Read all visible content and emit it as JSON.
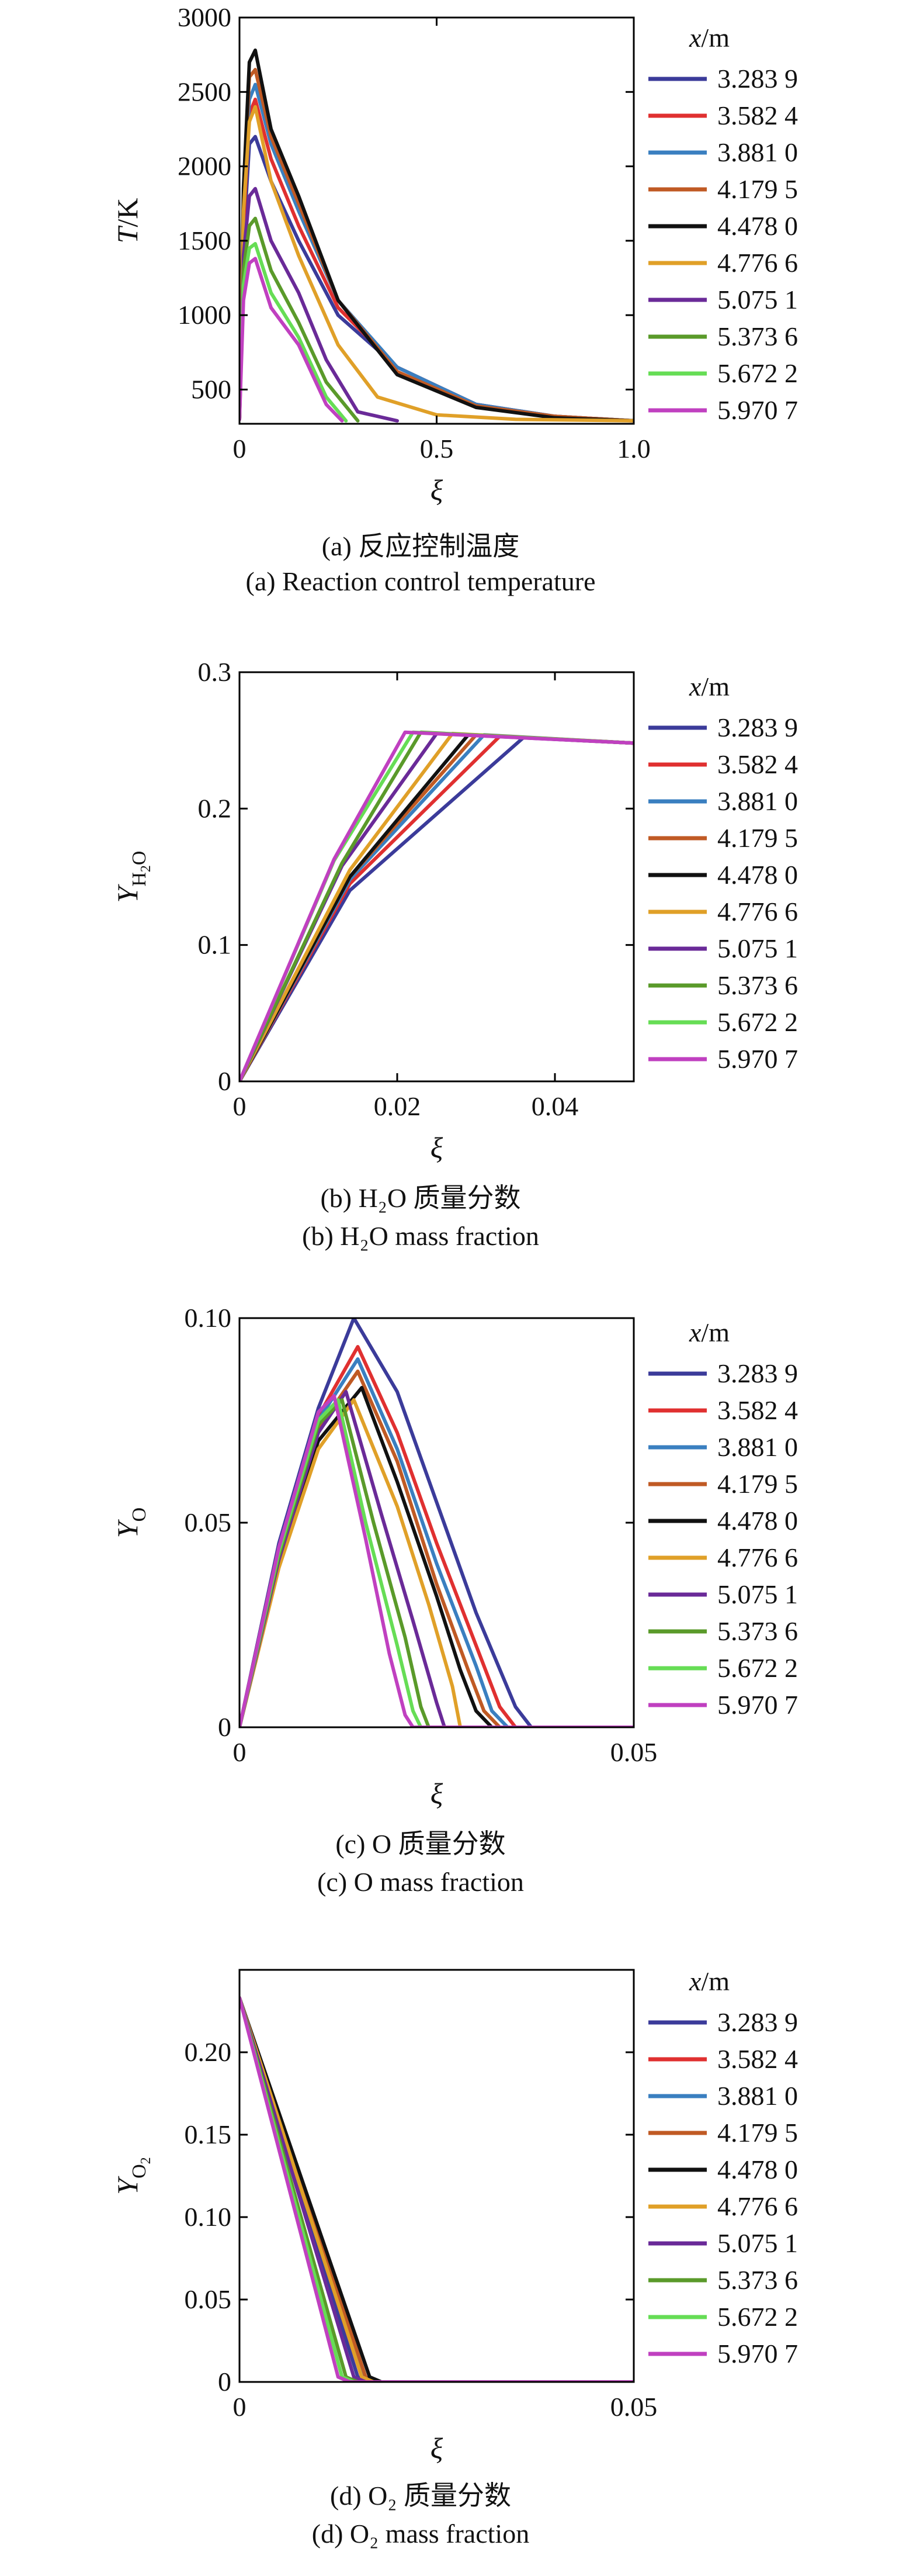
{
  "legend_title": "x/m",
  "legend_entries": [
    "3.283 9",
    "3.582 4",
    "3.881 0",
    "4.179 5",
    "4.478 0",
    "4.776 6",
    "5.075 1",
    "5.373 6",
    "5.672 2",
    "5.970 7"
  ],
  "colors": [
    "#3b3b9a",
    "#e03030",
    "#3a7fc0",
    "#c05a24",
    "#111111",
    "#e0a028",
    "#6a2a98",
    "#5a9a2a",
    "#66dd55",
    "#c040c0"
  ],
  "chart_data": [
    {
      "type": "line",
      "ylabel": "T/K",
      "xlabel": "ξ",
      "xlim": [
        0,
        1.0
      ],
      "ylim": [
        270,
        3000
      ],
      "xticks": [
        "0",
        "0.5",
        "1.0"
      ],
      "yticks": [
        "500",
        "1000",
        "1500",
        "2000",
        "2500",
        "3000"
      ],
      "caption_cn": "(a) 反应控制温度",
      "caption_en": "(a) Reaction control temperature",
      "series": [
        {
          "name": "3.283 9",
          "x": [
            0,
            0.01,
            0.025,
            0.04,
            0.08,
            0.15,
            0.25,
            0.4,
            0.6,
            0.8,
            1.0
          ],
          "y": [
            300,
            1500,
            2150,
            2200,
            1900,
            1500,
            1000,
            650,
            400,
            320,
            290
          ]
        },
        {
          "name": "3.582 4",
          "x": [
            0,
            0.01,
            0.025,
            0.04,
            0.08,
            0.15,
            0.25,
            0.4,
            0.6,
            0.8,
            1.0
          ],
          "y": [
            300,
            1600,
            2350,
            2450,
            2050,
            1600,
            1050,
            650,
            400,
            320,
            290
          ]
        },
        {
          "name": "3.881 0",
          "x": [
            0,
            0.01,
            0.025,
            0.04,
            0.08,
            0.15,
            0.25,
            0.4,
            0.6,
            0.8,
            1.0
          ],
          "y": [
            300,
            1700,
            2450,
            2550,
            2150,
            1700,
            1100,
            650,
            400,
            320,
            290
          ]
        },
        {
          "name": "4.179 5",
          "x": [
            0,
            0.01,
            0.025,
            0.04,
            0.08,
            0.15,
            0.25,
            0.4,
            0.6,
            0.8,
            1.0
          ],
          "y": [
            300,
            1800,
            2600,
            2650,
            2200,
            1750,
            1100,
            620,
            390,
            320,
            290
          ]
        },
        {
          "name": "4.478 0",
          "x": [
            0,
            0.01,
            0.025,
            0.04,
            0.08,
            0.15,
            0.25,
            0.4,
            0.6,
            0.8,
            1.0
          ],
          "y": [
            300,
            1850,
            2700,
            2780,
            2250,
            1800,
            1100,
            600,
            380,
            310,
            290
          ]
        },
        {
          "name": "4.776 6",
          "x": [
            0,
            0.01,
            0.025,
            0.04,
            0.08,
            0.15,
            0.25,
            0.35,
            0.5,
            0.7,
            1.0
          ],
          "y": [
            300,
            1700,
            2300,
            2400,
            1900,
            1400,
            800,
            450,
            330,
            300,
            290
          ]
        },
        {
          "name": "5.075 1",
          "x": [
            0,
            0.01,
            0.025,
            0.04,
            0.08,
            0.15,
            0.22,
            0.3,
            0.4
          ],
          "y": [
            300,
            1400,
            1800,
            1850,
            1500,
            1150,
            700,
            350,
            290
          ]
        },
        {
          "name": "5.373 6",
          "x": [
            0,
            0.01,
            0.025,
            0.04,
            0.08,
            0.15,
            0.22,
            0.3
          ],
          "y": [
            300,
            1300,
            1600,
            1650,
            1300,
            950,
            550,
            290
          ]
        },
        {
          "name": "5.672 2",
          "x": [
            0,
            0.01,
            0.025,
            0.04,
            0.08,
            0.15,
            0.22,
            0.27
          ],
          "y": [
            300,
            1200,
            1450,
            1480,
            1150,
            850,
            450,
            290
          ]
        },
        {
          "name": "5.970 7",
          "x": [
            0,
            0.01,
            0.025,
            0.04,
            0.08,
            0.15,
            0.22,
            0.26
          ],
          "y": [
            300,
            1100,
            1350,
            1380,
            1050,
            800,
            400,
            290
          ]
        }
      ]
    },
    {
      "type": "line",
      "ylabel": "Y_H2O",
      "xlabel": "ξ",
      "xlim": [
        0,
        0.05
      ],
      "ylim": [
        0,
        0.3
      ],
      "xticks": [
        "0",
        "0.02",
        "0.04"
      ],
      "yticks": [
        "0",
        "0.1",
        "0.2",
        "0.3"
      ],
      "caption_cn": "(b) H₂O 质量分数",
      "caption_en": "(b) H₂O mass fraction",
      "series": [
        {
          "name": "3.283 9",
          "x": [
            0,
            0.014,
            0.036,
            0.05
          ],
          "y": [
            0,
            0.14,
            0.252,
            0.248
          ]
        },
        {
          "name": "3.582 4",
          "x": [
            0,
            0.014,
            0.033,
            0.05
          ],
          "y": [
            0,
            0.145,
            0.253,
            0.248
          ]
        },
        {
          "name": "3.881 0",
          "x": [
            0,
            0.014,
            0.031,
            0.05
          ],
          "y": [
            0,
            0.148,
            0.254,
            0.248
          ]
        },
        {
          "name": "4.179 5",
          "x": [
            0,
            0.014,
            0.03,
            0.05
          ],
          "y": [
            0,
            0.15,
            0.254,
            0.248
          ]
        },
        {
          "name": "4.478 0",
          "x": [
            0,
            0.014,
            0.029,
            0.05
          ],
          "y": [
            0,
            0.15,
            0.254,
            0.248
          ]
        },
        {
          "name": "4.776 6",
          "x": [
            0,
            0.014,
            0.027,
            0.05
          ],
          "y": [
            0,
            0.155,
            0.255,
            0.248
          ]
        },
        {
          "name": "5.075 1",
          "x": [
            0,
            0.013,
            0.025,
            0.05
          ],
          "y": [
            0,
            0.158,
            0.255,
            0.248
          ]
        },
        {
          "name": "5.373 6",
          "x": [
            0,
            0.013,
            0.023,
            0.05
          ],
          "y": [
            0,
            0.16,
            0.256,
            0.248
          ]
        },
        {
          "name": "5.672 2",
          "x": [
            0,
            0.012,
            0.022,
            0.05
          ],
          "y": [
            0,
            0.162,
            0.256,
            0.248
          ]
        },
        {
          "name": "5.970 7",
          "x": [
            0,
            0.012,
            0.021,
            0.05
          ],
          "y": [
            0,
            0.163,
            0.256,
            0.248
          ]
        }
      ]
    },
    {
      "type": "line",
      "ylabel": "Y_O",
      "xlabel": "ξ",
      "xlim": [
        0,
        0.05
      ],
      "ylim": [
        0,
        0.1
      ],
      "xticks": [
        "0",
        "0.05"
      ],
      "yticks": [
        "0",
        "0.05",
        "0.10"
      ],
      "caption_cn": "(c) O 质量分数",
      "caption_en": "(c) O mass fraction",
      "series": [
        {
          "name": "3.283 9",
          "x": [
            0,
            0.005,
            0.01,
            0.0145,
            0.02,
            0.025,
            0.03,
            0.035,
            0.037,
            0.05
          ],
          "y": [
            0,
            0.045,
            0.078,
            0.1,
            0.082,
            0.055,
            0.028,
            0.005,
            0,
            0
          ]
        },
        {
          "name": "3.582 4",
          "x": [
            0,
            0.005,
            0.01,
            0.015,
            0.02,
            0.025,
            0.03,
            0.033,
            0.035,
            0.05
          ],
          "y": [
            0,
            0.044,
            0.076,
            0.093,
            0.072,
            0.045,
            0.02,
            0.005,
            0,
            0
          ]
        },
        {
          "name": "3.881 0",
          "x": [
            0,
            0.005,
            0.01,
            0.015,
            0.02,
            0.025,
            0.03,
            0.032,
            0.034,
            0.05
          ],
          "y": [
            0,
            0.043,
            0.075,
            0.09,
            0.068,
            0.04,
            0.015,
            0.004,
            0,
            0
          ]
        },
        {
          "name": "4.179 5",
          "x": [
            0,
            0.005,
            0.01,
            0.015,
            0.02,
            0.025,
            0.029,
            0.031,
            0.033,
            0.05
          ],
          "y": [
            0,
            0.042,
            0.073,
            0.087,
            0.065,
            0.035,
            0.014,
            0.004,
            0,
            0
          ]
        },
        {
          "name": "4.478 0",
          "x": [
            0,
            0.005,
            0.01,
            0.0155,
            0.02,
            0.025,
            0.028,
            0.03,
            0.032,
            0.05
          ],
          "y": [
            0,
            0.04,
            0.07,
            0.083,
            0.06,
            0.032,
            0.014,
            0.004,
            0,
            0
          ]
        },
        {
          "name": "4.776 6",
          "x": [
            0,
            0.005,
            0.01,
            0.0145,
            0.02,
            0.024,
            0.027,
            0.028,
            0.05
          ],
          "y": [
            0,
            0.039,
            0.068,
            0.08,
            0.054,
            0.03,
            0.01,
            0,
            0
          ]
        },
        {
          "name": "5.075 1",
          "x": [
            0,
            0.005,
            0.01,
            0.0135,
            0.018,
            0.022,
            0.025,
            0.026,
            0.05
          ],
          "y": [
            0,
            0.041,
            0.072,
            0.082,
            0.052,
            0.026,
            0.006,
            0,
            0
          ]
        },
        {
          "name": "5.373 6",
          "x": [
            0,
            0.005,
            0.01,
            0.013,
            0.017,
            0.021,
            0.023,
            0.024,
            0.05
          ],
          "y": [
            0,
            0.042,
            0.074,
            0.08,
            0.05,
            0.022,
            0.005,
            0,
            0
          ]
        },
        {
          "name": "5.672 2",
          "x": [
            0,
            0.005,
            0.01,
            0.0125,
            0.016,
            0.02,
            0.022,
            0.023,
            0.05
          ],
          "y": [
            0,
            0.043,
            0.075,
            0.08,
            0.05,
            0.02,
            0.004,
            0,
            0
          ]
        },
        {
          "name": "5.970 7",
          "x": [
            0,
            0.005,
            0.01,
            0.012,
            0.016,
            0.019,
            0.021,
            0.022,
            0.05
          ],
          "y": [
            0,
            0.044,
            0.077,
            0.081,
            0.046,
            0.018,
            0.003,
            0,
            0
          ]
        }
      ]
    },
    {
      "type": "line",
      "ylabel": "Y_O2",
      "xlabel": "ξ",
      "xlim": [
        0,
        0.05
      ],
      "ylim": [
        0,
        0.25
      ],
      "xticks": [
        "0",
        "0.05"
      ],
      "yticks": [
        "0",
        "0.05",
        "0.10",
        "0.15",
        "0.20"
      ],
      "caption_cn": "(d) O₂ 质量分数",
      "caption_en": "(d) O₂ mass fraction",
      "series": [
        {
          "name": "3.283 9",
          "x": [
            0,
            0.015,
            0.0165,
            0.05
          ],
          "y": [
            0.233,
            0.003,
            0,
            0
          ]
        },
        {
          "name": "3.582 4",
          "x": [
            0,
            0.0155,
            0.017,
            0.05
          ],
          "y": [
            0.233,
            0.003,
            0,
            0
          ]
        },
        {
          "name": "3.881 0",
          "x": [
            0,
            0.0158,
            0.0172,
            0.05
          ],
          "y": [
            0.233,
            0.003,
            0,
            0
          ]
        },
        {
          "name": "4.179 5",
          "x": [
            0,
            0.016,
            0.0175,
            0.05
          ],
          "y": [
            0.233,
            0.003,
            0,
            0
          ]
        },
        {
          "name": "4.478 0",
          "x": [
            0,
            0.0165,
            0.018,
            0.05
          ],
          "y": [
            0.233,
            0.003,
            0,
            0
          ]
        },
        {
          "name": "4.776 6",
          "x": [
            0,
            0.0155,
            0.017,
            0.05
          ],
          "y": [
            0.233,
            0.003,
            0,
            0
          ]
        },
        {
          "name": "5.075 1",
          "x": [
            0,
            0.0145,
            0.016,
            0.05
          ],
          "y": [
            0.233,
            0.003,
            0,
            0
          ]
        },
        {
          "name": "5.373 6",
          "x": [
            0,
            0.0135,
            0.015,
            0.05
          ],
          "y": [
            0.233,
            0.003,
            0,
            0
          ]
        },
        {
          "name": "5.672 2",
          "x": [
            0,
            0.013,
            0.0145,
            0.05
          ],
          "y": [
            0.233,
            0.003,
            0,
            0
          ]
        },
        {
          "name": "5.970 7",
          "x": [
            0,
            0.0125,
            0.014,
            0.05
          ],
          "y": [
            0.233,
            0.003,
            0,
            0
          ]
        }
      ]
    }
  ]
}
